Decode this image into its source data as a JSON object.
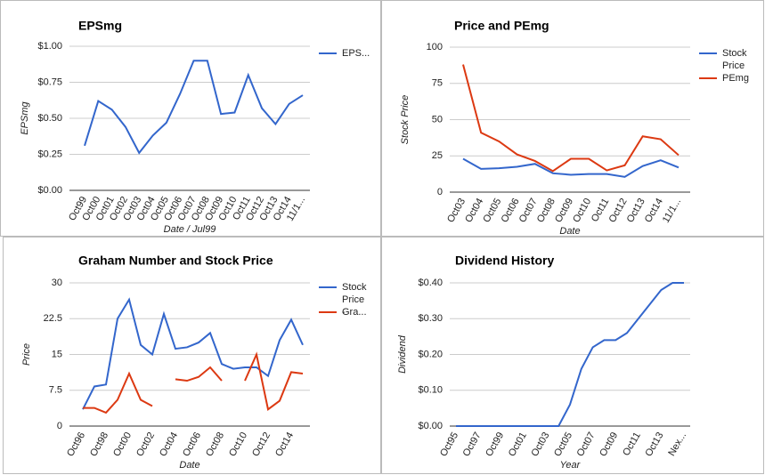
{
  "chart_data": [
    {
      "type": "line",
      "title": "EPSmg",
      "x_label": "Date / Jul99",
      "y_label": "EPSmg",
      "legend": "right",
      "categories": [
        "Oct99",
        "Oct00",
        "Oct01",
        "Oct02",
        "Oct03",
        "Oct04",
        "Oct05",
        "Oct06",
        "Oct07",
        "Oct08",
        "Oct09",
        "Oct10",
        "Oct11",
        "Oct12",
        "Oct13",
        "Oct14",
        "11/1..."
      ],
      "series": [
        {
          "name": "EPS...",
          "color": "#3366cc",
          "values": [
            0.31,
            0.62,
            0.56,
            0.44,
            0.26,
            0.38,
            0.47,
            0.67,
            0.9,
            0.9,
            0.53,
            0.54,
            0.8,
            0.57,
            0.46,
            0.6,
            0.66
          ]
        }
      ],
      "ylim": [
        0,
        1
      ],
      "yticks": [
        {
          "value": 0,
          "label": "$0.00"
        },
        {
          "value": 0.25,
          "label": "$0.25"
        },
        {
          "value": 0.5,
          "label": "$0.50"
        },
        {
          "value": 0.75,
          "label": "$0.75"
        },
        {
          "value": 1,
          "label": "$1.00"
        }
      ],
      "grid": true
    },
    {
      "type": "line",
      "title": "Price and PEmg",
      "x_label": "Date",
      "y_label": "Stock Price",
      "legend": "right",
      "categories": [
        "Oct03",
        "Oct04",
        "Oct05",
        "Oct06",
        "Oct07",
        "Oct08",
        "Oct09",
        "Oct10",
        "Oct11",
        "Oct12",
        "Oct13",
        "Oct14",
        "11/1..."
      ],
      "series": [
        {
          "name": "Stock Price",
          "color": "#3366cc",
          "values": [
            23,
            16,
            16.5,
            17.5,
            19.5,
            13,
            12,
            12.5,
            12.5,
            10.5,
            18,
            22,
            17
          ]
        },
        {
          "name": "PEmg",
          "color": "#dc3912",
          "values": [
            88,
            41,
            35,
            26,
            21.5,
            14.5,
            23,
            23,
            15,
            18.5,
            38.5,
            36.5,
            25.5
          ]
        }
      ],
      "ylim": [
        0,
        100
      ],
      "yticks": [
        0,
        25,
        50,
        75,
        100
      ],
      "grid": true
    },
    {
      "type": "line",
      "title": "Graham Number and Stock Price",
      "x_label": "Date",
      "y_label": "Price",
      "legend": "right",
      "categories": [
        "Oct96",
        null,
        "Oct98",
        null,
        "Oct00",
        null,
        "Oct02",
        null,
        "Oct04",
        null,
        "Oct06",
        null,
        "Oct08",
        null,
        "Oct10",
        null,
        "Oct12",
        null,
        "Oct14",
        null
      ],
      "series": [
        {
          "name": "Stock Price -",
          "color": "#3366cc",
          "values": [
            3.5,
            8.3,
            8.7,
            22.5,
            26.5,
            17,
            15,
            23.5,
            16.2,
            16.5,
            17.5,
            19.5,
            13,
            12,
            12.3,
            12.3,
            10.5,
            18,
            22.3,
            17
          ]
        },
        {
          "name": "Gra...",
          "color": "#dc3912",
          "values": [
            3.8,
            3.8,
            2.8,
            5.5,
            11,
            5.5,
            4.2,
            null,
            9.8,
            9.5,
            10.3,
            12.3,
            9.5,
            null,
            9.5,
            15,
            3.5,
            5.3,
            11.3,
            11
          ]
        }
      ],
      "ylim": [
        0,
        30
      ],
      "yticks": [
        0,
        7.5,
        15,
        22.5,
        30
      ],
      "grid": true
    },
    {
      "type": "line",
      "title": "Dividend History",
      "x_label": "Year",
      "y_label": "Dividend",
      "categories": [
        "Oct95",
        null,
        "Oct97",
        null,
        "Oct99",
        null,
        "Oct01",
        null,
        "Oct03",
        null,
        "Oct05",
        null,
        "Oct07",
        null,
        "Oct09",
        null,
        "Oct11",
        null,
        "Oct13",
        null,
        "Nex..."
      ],
      "series": [
        {
          "color": "#3366cc",
          "values": [
            0,
            0,
            0,
            0,
            0,
            0,
            0,
            0,
            0,
            0,
            0.06,
            0.16,
            0.22,
            0.24,
            0.24,
            0.26,
            0.3,
            0.34,
            0.38,
            0.4,
            0.4
          ]
        }
      ],
      "ylim": [
        0,
        0.4
      ],
      "yticks": [
        {
          "value": 0,
          "label": "$0.00"
        },
        {
          "value": 0.1,
          "label": "$0.10"
        },
        {
          "value": 0.2,
          "label": "$0.20"
        },
        {
          "value": 0.3,
          "label": "$0.30"
        },
        {
          "value": 0.4,
          "label": "$0.40"
        }
      ],
      "grid": true
    }
  ]
}
